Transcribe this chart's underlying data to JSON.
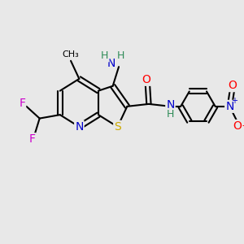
{
  "bg_color": "#e8e8e8",
  "bond_color": "#000000",
  "bond_width": 1.5,
  "atom_colors": {
    "C": "#000000",
    "N": "#0000cc",
    "S": "#ccaa00",
    "O": "#ff0000",
    "F": "#cc00cc",
    "H": "#2e8b57"
  },
  "font_size": 9
}
